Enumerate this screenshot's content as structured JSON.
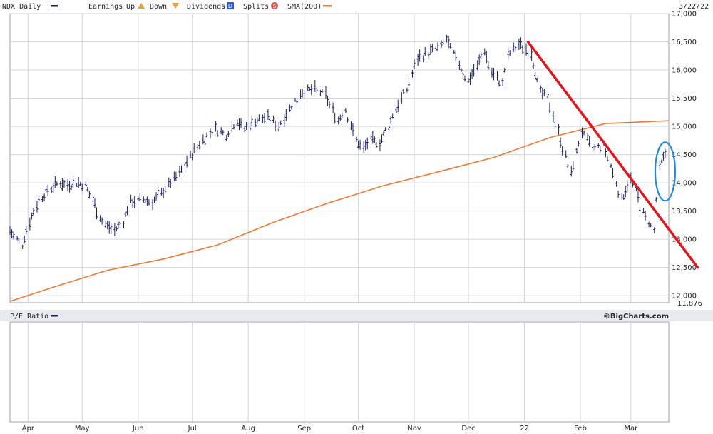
{
  "legend": {
    "symbol": "NDX Daily",
    "earnings_label": "Earnings",
    "up_label": "Up",
    "down_label": "Down",
    "dividends_label": "Dividends",
    "dividends_badge": "D",
    "splits_label": "Splits",
    "splits_badge": "S",
    "sma_label": "SMA(200)",
    "date": "3/22/22"
  },
  "lower_panel": {
    "title": "P/E Ratio",
    "brand": "©BigCharts.com"
  },
  "colors": {
    "price_bars": "#1a1f5c",
    "sma": "#f07a36",
    "trendline": "#e8121b",
    "highlight_ellipse": "#1e88e5",
    "grid": "#d2d4dc",
    "legend_up": "#e6a23c",
    "dividend_badge": "#2a5bd7",
    "split_badge": "#d9534f"
  },
  "chart_data": [
    {
      "type": "line",
      "title": "NDX Daily",
      "x_range": [
        "2021-03-22",
        "2022-03-22"
      ],
      "x_tick_labels": [
        "Apr",
        "May",
        "Jun",
        "Jul",
        "Aug",
        "Sep",
        "Oct",
        "Nov",
        "Dec",
        "22",
        "Feb",
        "Mar"
      ],
      "y_ticks": [
        12000,
        12500,
        13000,
        13500,
        14000,
        14500,
        15000,
        15500,
        16000,
        16500,
        17000
      ],
      "y_tick_labels": [
        "12,000",
        "12,500",
        "13,000",
        "13,500",
        "14,000",
        "14,500",
        "15,000",
        "15,500",
        "16,000",
        "16,500",
        "17,000"
      ],
      "y_extra_label": "11,876",
      "ylim": [
        11876,
        17000
      ],
      "grid": true,
      "legend_position": "top",
      "series": [
        {
          "name": "NDX Daily",
          "style": "ohlc-bars",
          "points": [
            {
              "date": "2021-03-22",
              "value": 13150
            },
            {
              "date": "2021-03-29",
              "value": 12900
            },
            {
              "date": "2021-04-02",
              "value": 13300
            },
            {
              "date": "2021-04-06",
              "value": 13600
            },
            {
              "date": "2021-04-09",
              "value": 13750
            },
            {
              "date": "2021-04-14",
              "value": 13900
            },
            {
              "date": "2021-04-19",
              "value": 14000
            },
            {
              "date": "2021-04-23",
              "value": 13950
            },
            {
              "date": "2021-04-28",
              "value": 14000
            },
            {
              "date": "2021-05-03",
              "value": 13950
            },
            {
              "date": "2021-05-07",
              "value": 13700
            },
            {
              "date": "2021-05-11",
              "value": 13400
            },
            {
              "date": "2021-05-14",
              "value": 13250
            },
            {
              "date": "2021-05-19",
              "value": 13150
            },
            {
              "date": "2021-05-24",
              "value": 13300
            },
            {
              "date": "2021-05-28",
              "value": 13650
            },
            {
              "date": "2021-06-04",
              "value": 13700
            },
            {
              "date": "2021-06-09",
              "value": 13650
            },
            {
              "date": "2021-06-14",
              "value": 13800
            },
            {
              "date": "2021-06-18",
              "value": 13950
            },
            {
              "date": "2021-06-24",
              "value": 14150
            },
            {
              "date": "2021-06-30",
              "value": 14450
            },
            {
              "date": "2021-07-07",
              "value": 14750
            },
            {
              "date": "2021-07-14",
              "value": 14950
            },
            {
              "date": "2021-07-20",
              "value": 14850
            },
            {
              "date": "2021-07-26",
              "value": 15100
            },
            {
              "date": "2021-07-30",
              "value": 14950
            },
            {
              "date": "2021-08-05",
              "value": 15100
            },
            {
              "date": "2021-08-12",
              "value": 15150
            },
            {
              "date": "2021-08-18",
              "value": 15000
            },
            {
              "date": "2021-08-24",
              "value": 15300
            },
            {
              "date": "2021-08-30",
              "value": 15600
            },
            {
              "date": "2021-09-07",
              "value": 15650
            },
            {
              "date": "2021-09-13",
              "value": 15550
            },
            {
              "date": "2021-09-20",
              "value": 15100
            },
            {
              "date": "2021-09-24",
              "value": 15300
            },
            {
              "date": "2021-09-30",
              "value": 14750
            },
            {
              "date": "2021-10-04",
              "value": 14600
            },
            {
              "date": "2021-10-08",
              "value": 14750
            },
            {
              "date": "2021-10-13",
              "value": 14700
            },
            {
              "date": "2021-10-18",
              "value": 15000
            },
            {
              "date": "2021-10-22",
              "value": 15300
            },
            {
              "date": "2021-10-28",
              "value": 15650
            },
            {
              "date": "2021-11-03",
              "value": 16200
            },
            {
              "date": "2021-11-09",
              "value": 16300
            },
            {
              "date": "2021-11-16",
              "value": 16400
            },
            {
              "date": "2021-11-19",
              "value": 16550
            },
            {
              "date": "2021-11-26",
              "value": 16100
            },
            {
              "date": "2021-12-01",
              "value": 15800
            },
            {
              "date": "2021-12-06",
              "value": 16050
            },
            {
              "date": "2021-12-10",
              "value": 16350
            },
            {
              "date": "2021-12-14",
              "value": 15950
            },
            {
              "date": "2021-12-20",
              "value": 15750
            },
            {
              "date": "2021-12-23",
              "value": 16250
            },
            {
              "date": "2021-12-29",
              "value": 16450
            },
            {
              "date": "2022-01-05",
              "value": 16300
            },
            {
              "date": "2022-01-10",
              "value": 15600
            },
            {
              "date": "2022-01-14",
              "value": 15500
            },
            {
              "date": "2022-01-20",
              "value": 14900
            },
            {
              "date": "2022-01-27",
              "value": 14150
            },
            {
              "date": "2022-02-02",
              "value": 14900
            },
            {
              "date": "2022-02-08",
              "value": 14600
            },
            {
              "date": "2022-02-14",
              "value": 14650
            },
            {
              "date": "2022-02-18",
              "value": 14300
            },
            {
              "date": "2022-02-24",
              "value": 13700
            },
            {
              "date": "2022-03-01",
              "value": 14050
            },
            {
              "date": "2022-03-04",
              "value": 13850
            },
            {
              "date": "2022-03-08",
              "value": 13450
            },
            {
              "date": "2022-03-14",
              "value": 13150
            },
            {
              "date": "2022-03-17",
              "value": 14250
            },
            {
              "date": "2022-03-22",
              "value": 14600
            }
          ]
        },
        {
          "name": "SMA(200)",
          "style": "line",
          "points": [
            {
              "date": "2021-03-22",
              "value": 11900
            },
            {
              "date": "2021-04-15",
              "value": 12150
            },
            {
              "date": "2021-05-15",
              "value": 12450
            },
            {
              "date": "2021-06-15",
              "value": 12650
            },
            {
              "date": "2021-07-15",
              "value": 12900
            },
            {
              "date": "2021-08-15",
              "value": 13300
            },
            {
              "date": "2021-09-15",
              "value": 13650
            },
            {
              "date": "2021-10-15",
              "value": 13950
            },
            {
              "date": "2021-11-15",
              "value": 14200
            },
            {
              "date": "2021-12-15",
              "value": 14450
            },
            {
              "date": "2022-01-15",
              "value": 14800
            },
            {
              "date": "2022-02-15",
              "value": 15050
            },
            {
              "date": "2022-03-22",
              "value": 15100
            }
          ]
        }
      ],
      "annotations": [
        {
          "kind": "trendline",
          "from": {
            "date": "2022-01-03",
            "value": 16500
          },
          "to": {
            "date": "2022-04-07",
            "value": 12500
          }
        },
        {
          "kind": "ellipse",
          "center": {
            "date": "2022-03-20",
            "value": 14200
          },
          "note": "recent rebound highlighted"
        }
      ]
    },
    {
      "type": "line",
      "title": "P/E Ratio",
      "series": [],
      "x_tick_labels": [
        "Apr",
        "May",
        "Jun",
        "Jul",
        "Aug",
        "Sep",
        "Oct",
        "Nov",
        "Dec",
        "22",
        "Feb",
        "Mar"
      ]
    }
  ]
}
